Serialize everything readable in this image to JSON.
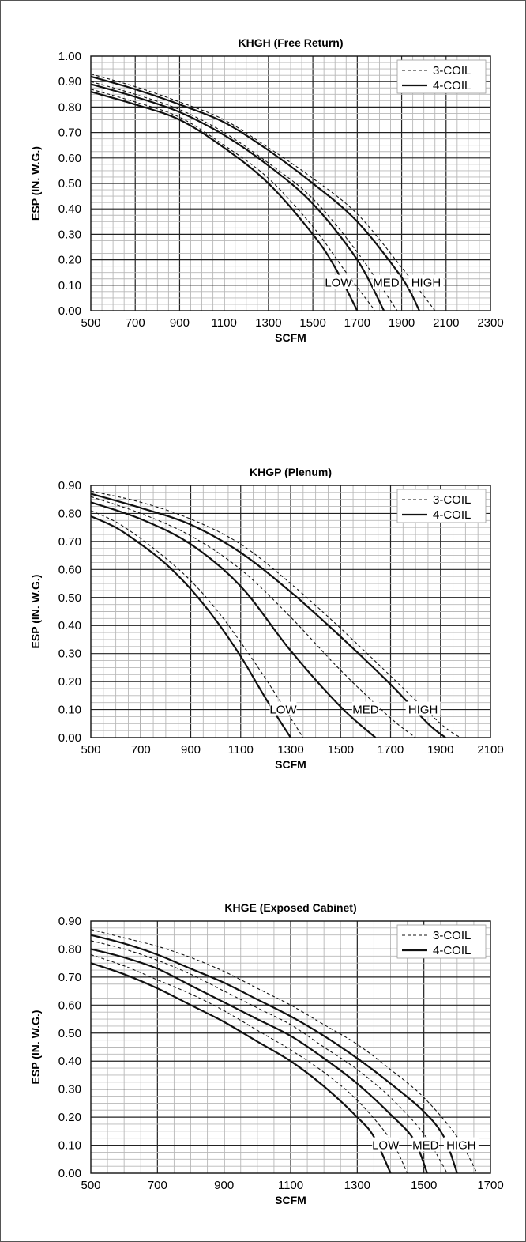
{
  "chart_data": [
    {
      "type": "line",
      "title": "KHGH (Free Return)",
      "xlabel": "SCFM",
      "ylabel": "ESP (IN. W.G.)",
      "xlim": [
        500,
        2300
      ],
      "ylim": [
        0,
        1.0
      ],
      "x_ticks": [
        "500",
        "700",
        "900",
        "1100",
        "1300",
        "1500",
        "1700",
        "1900",
        "2100",
        "2300"
      ],
      "y_ticks": [
        "0.00",
        "0.10",
        "0.20",
        "0.30",
        "0.40",
        "0.50",
        "0.60",
        "0.70",
        "0.80",
        "0.90",
        "1.00"
      ],
      "grid": true,
      "legend_position": "top-right",
      "legend": [
        {
          "label": "3-COIL",
          "style": "dashed"
        },
        {
          "label": "4-COIL",
          "style": "solid"
        }
      ],
      "speed_labels": [
        {
          "text": "LOW",
          "x": 1615,
          "y": 0.11
        },
        {
          "text": "MED",
          "x": 1830,
          "y": 0.11
        },
        {
          "text": "HIGH",
          "x": 2010,
          "y": 0.11
        }
      ],
      "series": [
        {
          "coil": "4-COIL",
          "speed": "LOW",
          "style": "solid",
          "points": [
            [
              500,
              0.86
            ],
            [
              700,
              0.81
            ],
            [
              900,
              0.75
            ],
            [
              1100,
              0.64
            ],
            [
              1300,
              0.5
            ],
            [
              1500,
              0.3
            ],
            [
              1600,
              0.17
            ],
            [
              1700,
              0.0
            ]
          ]
        },
        {
          "coil": "3-COIL",
          "speed": "LOW",
          "style": "dashed",
          "points": [
            [
              500,
              0.87
            ],
            [
              700,
              0.82
            ],
            [
              900,
              0.76
            ],
            [
              1100,
              0.65
            ],
            [
              1300,
              0.52
            ],
            [
              1500,
              0.33
            ],
            [
              1650,
              0.15
            ],
            [
              1780,
              0.0
            ]
          ]
        },
        {
          "coil": "4-COIL",
          "speed": "MED",
          "style": "solid",
          "points": [
            [
              500,
              0.89
            ],
            [
              700,
              0.84
            ],
            [
              900,
              0.78
            ],
            [
              1100,
              0.69
            ],
            [
              1300,
              0.57
            ],
            [
              1500,
              0.42
            ],
            [
              1700,
              0.2
            ],
            [
              1820,
              0.0
            ]
          ]
        },
        {
          "coil": "3-COIL",
          "speed": "MED",
          "style": "dashed",
          "points": [
            [
              500,
              0.9
            ],
            [
              700,
              0.85
            ],
            [
              900,
              0.79
            ],
            [
              1100,
              0.7
            ],
            [
              1300,
              0.58
            ],
            [
              1500,
              0.44
            ],
            [
              1700,
              0.23
            ],
            [
              1880,
              0.0
            ]
          ]
        },
        {
          "coil": "4-COIL",
          "speed": "HIGH",
          "style": "solid",
          "points": [
            [
              500,
              0.92
            ],
            [
              700,
              0.87
            ],
            [
              900,
              0.81
            ],
            [
              1100,
              0.74
            ],
            [
              1300,
              0.63
            ],
            [
              1500,
              0.5
            ],
            [
              1700,
              0.35
            ],
            [
              1900,
              0.13
            ],
            [
              1980,
              0.0
            ]
          ]
        },
        {
          "coil": "3-COIL",
          "speed": "HIGH",
          "style": "dashed",
          "points": [
            [
              500,
              0.93
            ],
            [
              700,
              0.88
            ],
            [
              900,
              0.82
            ],
            [
              1100,
              0.75
            ],
            [
              1300,
              0.64
            ],
            [
              1500,
              0.52
            ],
            [
              1700,
              0.38
            ],
            [
              1900,
              0.17
            ],
            [
              2050,
              0.0
            ]
          ]
        }
      ]
    },
    {
      "type": "line",
      "title": "KHGP (Plenum)",
      "xlabel": "SCFM",
      "ylabel": "ESP (IN. W.G.)",
      "xlim": [
        500,
        2100
      ],
      "ylim": [
        0,
        0.9
      ],
      "x_ticks": [
        "500",
        "700",
        "900",
        "1100",
        "1300",
        "1500",
        "1700",
        "1900",
        "2100"
      ],
      "y_ticks": [
        "0.00",
        "0.10",
        "0.20",
        "0.30",
        "0.40",
        "0.50",
        "0.60",
        "0.70",
        "0.80",
        "0.90"
      ],
      "grid": true,
      "legend_position": "top-right",
      "legend": [
        {
          "label": "3-COIL",
          "style": "dashed"
        },
        {
          "label": "4-COIL",
          "style": "solid"
        }
      ],
      "speed_labels": [
        {
          "text": "LOW",
          "x": 1270,
          "y": 0.1
        },
        {
          "text": "MED",
          "x": 1600,
          "y": 0.1
        },
        {
          "text": "HIGH",
          "x": 1830,
          "y": 0.1
        }
      ],
      "series": [
        {
          "coil": "4-COIL",
          "speed": "LOW",
          "style": "solid",
          "points": [
            [
              500,
              0.79
            ],
            [
              600,
              0.75
            ],
            [
              700,
              0.69
            ],
            [
              800,
              0.62
            ],
            [
              900,
              0.53
            ],
            [
              1000,
              0.42
            ],
            [
              1100,
              0.29
            ],
            [
              1200,
              0.14
            ],
            [
              1300,
              0.0
            ]
          ]
        },
        {
          "coil": "3-COIL",
          "speed": "LOW",
          "style": "dashed",
          "points": [
            [
              500,
              0.81
            ],
            [
              600,
              0.77
            ],
            [
              700,
              0.71
            ],
            [
              800,
              0.64
            ],
            [
              900,
              0.56
            ],
            [
              1000,
              0.46
            ],
            [
              1100,
              0.34
            ],
            [
              1200,
              0.21
            ],
            [
              1300,
              0.07
            ],
            [
              1350,
              0.0
            ]
          ]
        },
        {
          "coil": "4-COIL",
          "speed": "MED",
          "style": "solid",
          "points": [
            [
              500,
              0.84
            ],
            [
              700,
              0.78
            ],
            [
              900,
              0.69
            ],
            [
              1100,
              0.54
            ],
            [
              1300,
              0.31
            ],
            [
              1500,
              0.11
            ],
            [
              1640,
              0.0
            ]
          ]
        },
        {
          "coil": "3-COIL",
          "speed": "MED",
          "style": "dashed",
          "points": [
            [
              500,
              0.86
            ],
            [
              700,
              0.8
            ],
            [
              900,
              0.72
            ],
            [
              1100,
              0.6
            ],
            [
              1300,
              0.43
            ],
            [
              1500,
              0.24
            ],
            [
              1700,
              0.07
            ],
            [
              1800,
              0.0
            ]
          ]
        },
        {
          "coil": "4-COIL",
          "speed": "HIGH",
          "style": "solid",
          "points": [
            [
              500,
              0.87
            ],
            [
              700,
              0.82
            ],
            [
              900,
              0.76
            ],
            [
              1100,
              0.66
            ],
            [
              1300,
              0.52
            ],
            [
              1500,
              0.36
            ],
            [
              1700,
              0.19
            ],
            [
              1850,
              0.05
            ],
            [
              1920,
              0.0
            ]
          ]
        },
        {
          "coil": "3-COIL",
          "speed": "HIGH",
          "style": "dashed",
          "points": [
            [
              500,
              0.88
            ],
            [
              700,
              0.84
            ],
            [
              900,
              0.78
            ],
            [
              1100,
              0.69
            ],
            [
              1300,
              0.55
            ],
            [
              1500,
              0.39
            ],
            [
              1700,
              0.22
            ],
            [
              1900,
              0.05
            ],
            [
              1980,
              0.0
            ]
          ]
        }
      ]
    },
    {
      "type": "line",
      "title": "KHGE (Exposed Cabinet)",
      "xlabel": "SCFM",
      "ylabel": "ESP (IN. W.G.)",
      "xlim": [
        500,
        1700
      ],
      "ylim": [
        0,
        0.9
      ],
      "x_ticks": [
        "500",
        "700",
        "900",
        "1100",
        "1300",
        "1500",
        "1700"
      ],
      "y_ticks": [
        "0.00",
        "0.10",
        "0.20",
        "0.30",
        "0.40",
        "0.50",
        "0.60",
        "0.70",
        "0.80",
        "0.90"
      ],
      "grid": true,
      "legend_position": "top-right",
      "legend": [
        {
          "label": "3-COIL",
          "style": "dashed"
        },
        {
          "label": "4-COIL",
          "style": "solid"
        }
      ],
      "speed_labels": [
        {
          "text": "LOW",
          "x": 1385,
          "y": 0.1
        },
        {
          "text": "MED",
          "x": 1505,
          "y": 0.1
        },
        {
          "text": "HIGH",
          "x": 1612,
          "y": 0.1
        }
      ],
      "series": [
        {
          "coil": "4-COIL",
          "speed": "LOW",
          "style": "solid",
          "points": [
            [
              500,
              0.75
            ],
            [
              600,
              0.71
            ],
            [
              700,
              0.66
            ],
            [
              800,
              0.6
            ],
            [
              900,
              0.54
            ],
            [
              1000,
              0.47
            ],
            [
              1100,
              0.4
            ],
            [
              1200,
              0.31
            ],
            [
              1300,
              0.2
            ],
            [
              1350,
              0.13
            ],
            [
              1400,
              0.0
            ]
          ]
        },
        {
          "coil": "3-COIL",
          "speed": "LOW",
          "style": "dashed",
          "points": [
            [
              500,
              0.78
            ],
            [
              600,
              0.74
            ],
            [
              700,
              0.69
            ],
            [
              800,
              0.64
            ],
            [
              900,
              0.58
            ],
            [
              1000,
              0.51
            ],
            [
              1100,
              0.44
            ],
            [
              1200,
              0.36
            ],
            [
              1300,
              0.26
            ],
            [
              1400,
              0.12
            ],
            [
              1450,
              0.0
            ]
          ]
        },
        {
          "coil": "4-COIL",
          "speed": "MED",
          "style": "solid",
          "points": [
            [
              500,
              0.8
            ],
            [
              600,
              0.77
            ],
            [
              700,
              0.73
            ],
            [
              800,
              0.67
            ],
            [
              900,
              0.61
            ],
            [
              1000,
              0.55
            ],
            [
              1100,
              0.49
            ],
            [
              1200,
              0.41
            ],
            [
              1300,
              0.32
            ],
            [
              1400,
              0.21
            ],
            [
              1470,
              0.12
            ],
            [
              1510,
              0.0
            ]
          ]
        },
        {
          "coil": "3-COIL",
          "speed": "MED",
          "style": "dashed",
          "points": [
            [
              500,
              0.83
            ],
            [
              600,
              0.8
            ],
            [
              700,
              0.76
            ],
            [
              800,
              0.71
            ],
            [
              900,
              0.65
            ],
            [
              1000,
              0.59
            ],
            [
              1100,
              0.53
            ],
            [
              1200,
              0.45
            ],
            [
              1300,
              0.37
            ],
            [
              1400,
              0.27
            ],
            [
              1500,
              0.14
            ],
            [
              1570,
              0.0
            ]
          ]
        },
        {
          "coil": "4-COIL",
          "speed": "HIGH",
          "style": "solid",
          "points": [
            [
              500,
              0.85
            ],
            [
              600,
              0.82
            ],
            [
              700,
              0.78
            ],
            [
              800,
              0.73
            ],
            [
              900,
              0.68
            ],
            [
              1000,
              0.62
            ],
            [
              1100,
              0.56
            ],
            [
              1200,
              0.49
            ],
            [
              1300,
              0.41
            ],
            [
              1400,
              0.32
            ],
            [
              1500,
              0.22
            ],
            [
              1560,
              0.13
            ],
            [
              1600,
              0.0
            ]
          ]
        },
        {
          "coil": "3-COIL",
          "speed": "HIGH",
          "style": "dashed",
          "points": [
            [
              500,
              0.87
            ],
            [
              600,
              0.84
            ],
            [
              700,
              0.81
            ],
            [
              800,
              0.77
            ],
            [
              900,
              0.72
            ],
            [
              1000,
              0.66
            ],
            [
              1100,
              0.6
            ],
            [
              1200,
              0.53
            ],
            [
              1300,
              0.46
            ],
            [
              1400,
              0.37
            ],
            [
              1500,
              0.27
            ],
            [
              1600,
              0.13
            ],
            [
              1660,
              0.0
            ]
          ]
        }
      ]
    }
  ]
}
